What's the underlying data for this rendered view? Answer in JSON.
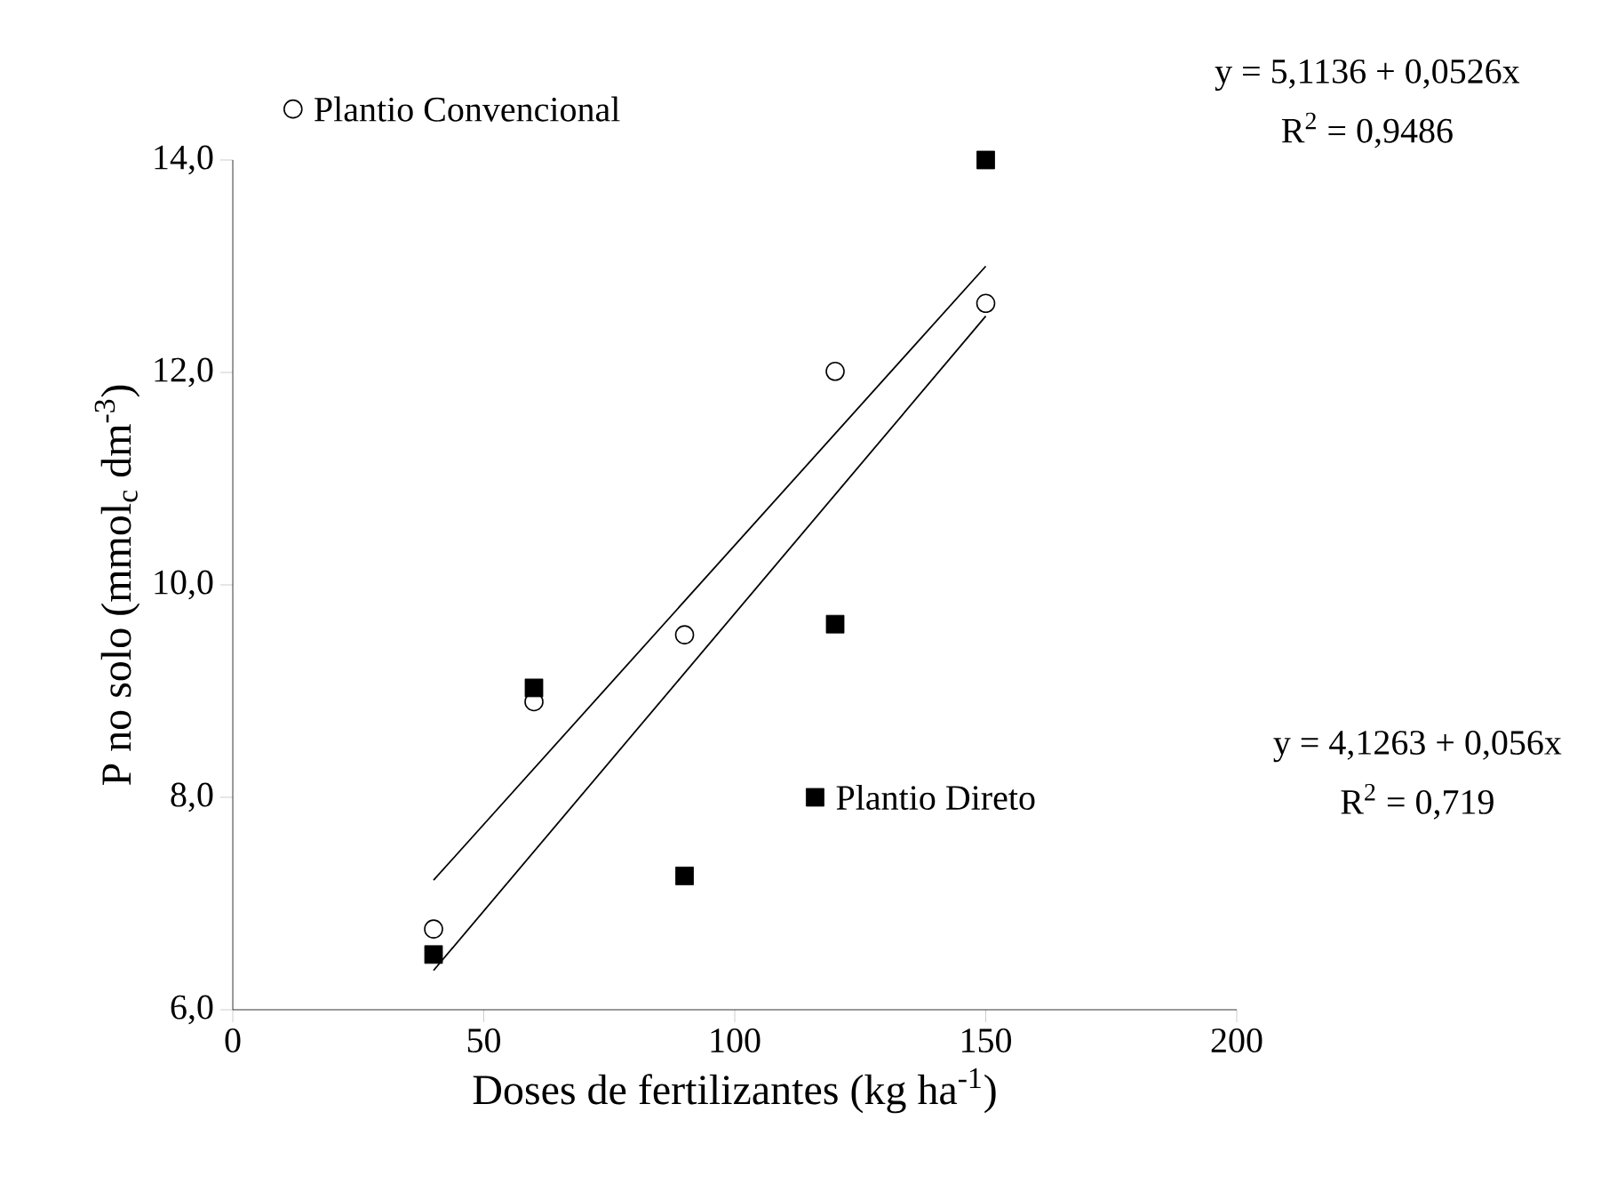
{
  "chart_data": {
    "type": "scatter",
    "xlabel": "Doses de fertilizantes (kg ha$^{-1}$)",
    "ylabel": "P no solo (mmol$_{c}$ dm$^{-3}$)",
    "xlim": [
      0,
      200
    ],
    "ylim": [
      6,
      14
    ],
    "xticks": [
      0,
      50,
      100,
      150,
      200
    ],
    "yticks": [
      {
        "value": 6,
        "label": "6,0"
      },
      {
        "value": 8,
        "label": "8,0"
      },
      {
        "value": 10,
        "label": "10,0"
      },
      {
        "value": 12,
        "label": "12,0"
      },
      {
        "value": 14,
        "label": "14,0"
      }
    ],
    "grid": false,
    "legend": "top left",
    "series": [
      {
        "name": "Plantio Convencional",
        "type": "scatter",
        "marker": "circle",
        "color": "#000000",
        "x": [
          40,
          60,
          90,
          120,
          150
        ],
        "values": [
          6.76,
          8.9,
          9.53,
          12.01,
          12.65
        ]
      },
      {
        "name": "Plantio Direto",
        "type": "scatter",
        "marker": "square",
        "color": "#000000",
        "x": [
          40,
          60,
          90,
          120,
          150
        ],
        "values": [
          6.52,
          9.03,
          7.26,
          9.63,
          14.0
        ]
      },
      {
        "type": "line",
        "marker": "none",
        "color": "#000000",
        "x": [
          40,
          150
        ],
        "values": [
          7.22,
          13.0
        ]
      },
      {
        "type": "line",
        "marker": "none",
        "color": "#000000",
        "x": [
          40,
          150
        ],
        "values": [
          6.37,
          12.53
        ]
      }
    ],
    "annotations": [
      "y = 5,1136 + 0,0526x",
      "R$^{2}$ = 0,9486",
      "y = 4,1263 + 0,056x",
      "R$^{2}$ = 0,719"
    ]
  }
}
